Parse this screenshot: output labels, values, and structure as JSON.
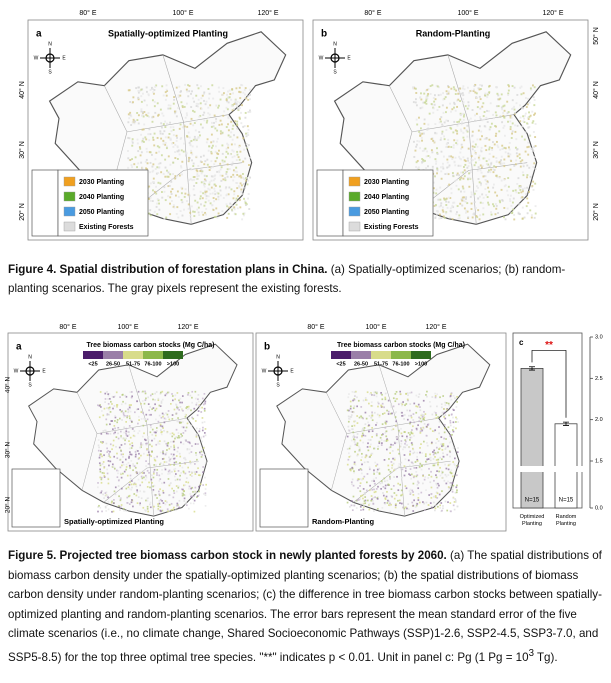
{
  "figure4": {
    "panels": [
      {
        "letter": "a",
        "title": "Spatially-optimized Planting"
      },
      {
        "letter": "b",
        "title": "Random-Planting"
      }
    ],
    "lon_labels": [
      "80° E",
      "100° E",
      "120° E"
    ],
    "lat_labels": [
      "50° N",
      "40° N",
      "30° N",
      "20° N"
    ],
    "compass": [
      "N",
      "E",
      "S",
      "W"
    ],
    "legend": [
      {
        "label": "2030 Planting",
        "color": "#f0a020"
      },
      {
        "label": "2040 Planting",
        "color": "#5aaa2a"
      },
      {
        "label": "2050 Planting",
        "color": "#4a9be0"
      },
      {
        "label": "Existing Forests",
        "color": "#dcdcdc"
      }
    ],
    "caption": {
      "bold": "Figure 4. Spatial distribution of forestation plans in China.",
      "text": "(a) Spatially-optimized scenarios; (b) random-planting scenarios. The gray pixels represent the existing forests."
    }
  },
  "figure5": {
    "panels": [
      {
        "letter": "a",
        "title": "Spatially-optimized Planting"
      },
      {
        "letter": "b",
        "title": "Random-Planting"
      }
    ],
    "legend_title": "Tree biomass carbon stocks (Mg C/ha)",
    "legend": [
      {
        "label": "<25",
        "color": "#4b1d6b"
      },
      {
        "label": "26-50",
        "color": "#9a7fa8"
      },
      {
        "label": "51-75",
        "color": "#d8dc8a"
      },
      {
        "label": "76-100",
        "color": "#8cb84a"
      },
      {
        "label": ">100",
        "color": "#2e6b1e"
      }
    ],
    "chart_data": {
      "type": "bar",
      "letter": "c",
      "categories": [
        "Optimized Planting",
        "Random Planting"
      ],
      "values": [
        2.62,
        1.95
      ],
      "errors": [
        0.02,
        0.02
      ],
      "colors": [
        "#c8c8c8",
        "#ffffff"
      ],
      "annotations": [
        "N=15",
        "N=15"
      ],
      "significance": "**",
      "ylim": [
        0,
        3.0
      ],
      "yticks": [
        {
          "value": 0,
          "label": "0.0"
        },
        1.5,
        {
          "value": 2,
          "label": "2.0"
        },
        2.5,
        {
          "value": 3,
          "label": "3.0"
        }
      ],
      "axis_break": true
    },
    "caption": {
      "bold": "Figure 5. Projected tree biomass carbon stock in newly planted forests by 2060.",
      "text": "(a) The spatial distributions of biomass carbon density under the spatially-optimized planting scenarios; (b) the spatial distributions of biomass carbon density under random-planting scenarios; (c) the difference in tree biomass carbon stocks between spatially-optimized planting and random-planting scenarios. The error bars represent the mean standard error of the five climate scenarios (i.e., no climate change, Shared Socioeconomic Pathways (SSP)1-2.6, SSP2-4.5, SSP3-7.0, and SSP5-8.5) for the top three optimal tree species. \"**\" indicates p < 0.01. Unit in panel c: Pg (1 Pg = 10",
      "sup": "3",
      "tail": " Tg)."
    }
  }
}
